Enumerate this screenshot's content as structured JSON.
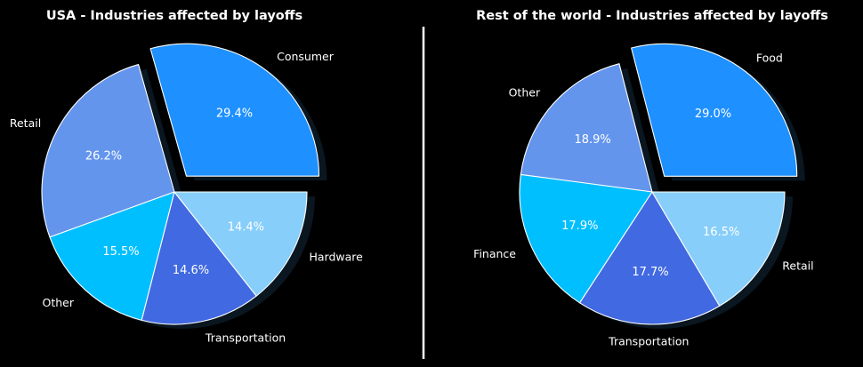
{
  "colors": {
    "background": "#000000",
    "slice_colors": [
      "#1e90ff",
      "#6495ed",
      "#00bfff",
      "#4169e1",
      "#87cefa"
    ],
    "edge": "#ffffff",
    "divider": "#ffffff"
  },
  "chart_data": [
    {
      "type": "pie",
      "title": "USA - Industries affected by layoffs",
      "labels": [
        "Consumer",
        "Retail",
        "Other",
        "Transportation",
        "Hardware"
      ],
      "values": [
        29.4,
        26.2,
        15.5,
        14.6,
        14.4
      ],
      "value_labels": [
        "29.4%",
        "26.2%",
        "15.5%",
        "14.6%",
        "14.4%"
      ],
      "exploded": "Consumer",
      "shadow": true
    },
    {
      "type": "pie",
      "title": "Rest of the world - Industries affected by layoffs",
      "labels": [
        "Food",
        "Other",
        "Finance",
        "Transportation",
        "Retail"
      ],
      "values": [
        29.0,
        18.9,
        17.9,
        17.7,
        16.5
      ],
      "value_labels": [
        "29.0%",
        "18.9%",
        "17.9%",
        "17.7%",
        "16.5%"
      ],
      "exploded": "Food",
      "shadow": true
    }
  ]
}
